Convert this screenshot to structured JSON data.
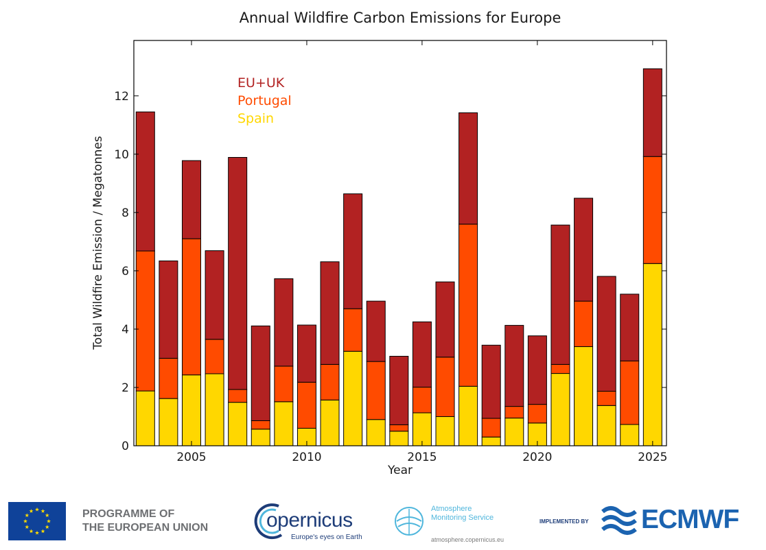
{
  "chart_data": {
    "type": "bar",
    "stacked": true,
    "title": "Annual Wildfire Carbon Emissions for Europe",
    "xlabel": "Year",
    "ylabel": "Total Wildfire Emission / Megatonnes",
    "ylim": [
      0,
      13.9
    ],
    "xlim": [
      2002.5,
      2025.6
    ],
    "yticks": [
      0,
      2,
      4,
      6,
      8,
      10,
      12
    ],
    "xticks": [
      2005,
      2010,
      2015,
      2020,
      2025
    ],
    "grid": false,
    "legend_position": "top-left",
    "categories": [
      2003,
      2004,
      2005,
      2006,
      2007,
      2008,
      2009,
      2010,
      2011,
      2012,
      2013,
      2014,
      2015,
      2016,
      2017,
      2018,
      2019,
      2020,
      2021,
      2022,
      2023,
      2024,
      2025
    ],
    "series": [
      {
        "name": "Spain",
        "color": "#ffd700",
        "values": [
          1.88,
          1.62,
          2.43,
          2.47,
          1.49,
          0.57,
          1.51,
          0.6,
          1.57,
          3.24,
          0.9,
          0.5,
          1.13,
          1.0,
          2.04,
          0.3,
          0.95,
          0.78,
          2.48,
          3.4,
          1.38,
          0.73,
          6.25
        ]
      },
      {
        "name": "Portugal",
        "color": "#ff4b00",
        "values": [
          4.8,
          1.38,
          4.67,
          1.18,
          0.44,
          0.29,
          1.22,
          1.58,
          1.22,
          1.46,
          1.99,
          0.22,
          0.88,
          2.04,
          5.56,
          0.64,
          0.4,
          0.64,
          0.31,
          1.56,
          0.49,
          2.18,
          3.67
        ]
      },
      {
        "name": "EU+UK",
        "color": "#b22222",
        "values": [
          4.77,
          3.34,
          2.68,
          3.04,
          7.96,
          3.25,
          3.0,
          1.96,
          3.52,
          3.94,
          2.07,
          2.35,
          2.24,
          2.58,
          3.82,
          2.51,
          2.78,
          2.35,
          4.78,
          3.53,
          3.94,
          2.29,
          3.01
        ]
      }
    ]
  },
  "footer": {
    "eu_line1": "PROGRAMME OF",
    "eu_line2": "THE EUROPEAN UNION",
    "copernicus_name": "opernicus",
    "copernicus_tagline": "Europe's eyes on Earth",
    "cams_line1": "Atmosphere",
    "cams_line2": "Monitoring Service",
    "cams_url": "atmosphere.copernicus.eu",
    "implemented_by": "IMPLEMENTED BY",
    "ecmwf_name": "ECMWF"
  }
}
